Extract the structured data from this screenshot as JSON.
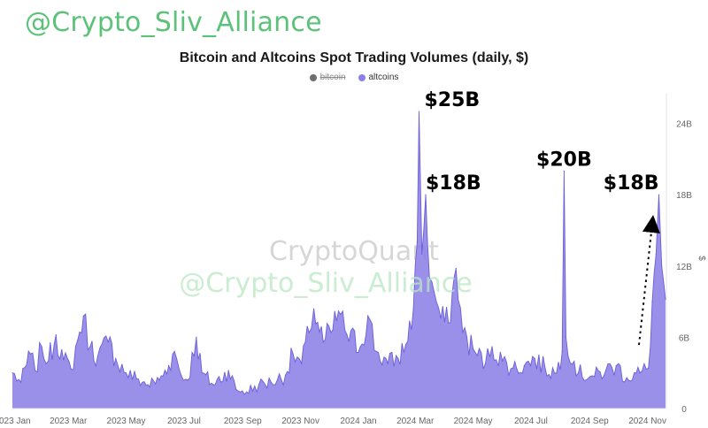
{
  "watermark": {
    "top_text": "@Crypto_Sliv_Alliance",
    "logo_text": "CryptoQuant",
    "overlay_text": "@Crypto_Sliv_Alliance"
  },
  "colors": {
    "altcoins": "#8c80e6",
    "altcoins_line": "#6b5fd8",
    "bitcoin": "#6e6e6e",
    "watermark_green": "#5cc27a"
  },
  "chart_data": {
    "type": "area",
    "title": "Bitcoin and Altcoins Spot Trading Volumes (daily, $)",
    "legend": [
      {
        "name": "bitcoin",
        "color": "#6e6e6e",
        "visible": false
      },
      {
        "name": "altcoins",
        "color": "#8c80e6",
        "visible": true
      }
    ],
    "legend_position": "top-center",
    "x_ticks": [
      "2023 Jan",
      "2023 Mar",
      "2023 May",
      "2023 Jul",
      "2023 Sep",
      "2023 Nov",
      "2024 Jan",
      "2024 Mar",
      "2024 May",
      "2024 Jul",
      "2024 Sep",
      "2024 Nov"
    ],
    "y_ticks": [
      "0",
      "6B",
      "12B",
      "18B",
      "24B"
    ],
    "y_axis_unit": "$",
    "y_axis_position": "right",
    "ylim": [
      0,
      26.5
    ],
    "y_unit": "billion USD",
    "x_range": [
      "2023-01-01",
      "2024-11-20"
    ],
    "grid": false,
    "series": [
      {
        "name": "altcoins",
        "points": [
          [
            "2023-01-01",
            3.0
          ],
          [
            "2023-01-10",
            2.2
          ],
          [
            "2023-01-20",
            4.6
          ],
          [
            "2023-01-25",
            3.2
          ],
          [
            "2023-02-01",
            5.2
          ],
          [
            "2023-02-08",
            4.0
          ],
          [
            "2023-02-16",
            6.2
          ],
          [
            "2023-02-24",
            4.1
          ],
          [
            "2023-03-04",
            3.3
          ],
          [
            "2023-03-11",
            5.8
          ],
          [
            "2023-03-17",
            7.8
          ],
          [
            "2023-03-24",
            5.2
          ],
          [
            "2023-04-01",
            4.4
          ],
          [
            "2023-04-12",
            5.6
          ],
          [
            "2023-04-20",
            4.2
          ],
          [
            "2023-05-01",
            3.0
          ],
          [
            "2023-05-12",
            2.5
          ],
          [
            "2023-05-24",
            2.0
          ],
          [
            "2023-06-05",
            2.4
          ],
          [
            "2023-06-15",
            3.6
          ],
          [
            "2023-06-21",
            4.8
          ],
          [
            "2023-06-28",
            2.8
          ],
          [
            "2023-07-05",
            2.4
          ],
          [
            "2023-07-14",
            6.0
          ],
          [
            "2023-07-20",
            3.0
          ],
          [
            "2023-08-01",
            2.0
          ],
          [
            "2023-08-17",
            3.2
          ],
          [
            "2023-08-25",
            1.6
          ],
          [
            "2023-09-05",
            1.4
          ],
          [
            "2023-09-18",
            2.0
          ],
          [
            "2023-10-01",
            2.2
          ],
          [
            "2023-10-16",
            2.8
          ],
          [
            "2023-10-24",
            4.6
          ],
          [
            "2023-11-02",
            3.8
          ],
          [
            "2023-11-10",
            6.4
          ],
          [
            "2023-11-15",
            8.4
          ],
          [
            "2023-11-25",
            5.6
          ],
          [
            "2023-12-05",
            6.6
          ],
          [
            "2023-12-11",
            8.2
          ],
          [
            "2023-12-20",
            6.2
          ],
          [
            "2024-01-03",
            5.2
          ],
          [
            "2024-01-11",
            7.8
          ],
          [
            "2024-01-20",
            4.8
          ],
          [
            "2024-02-01",
            3.8
          ],
          [
            "2024-02-12",
            4.2
          ],
          [
            "2024-02-20",
            5.4
          ],
          [
            "2024-02-28",
            8.4
          ],
          [
            "2024-03-03",
            14.0
          ],
          [
            "2024-03-05",
            25.0
          ],
          [
            "2024-03-08",
            13.0
          ],
          [
            "2024-03-12",
            18.0
          ],
          [
            "2024-03-16",
            11.0
          ],
          [
            "2024-03-21",
            9.8
          ],
          [
            "2024-03-28",
            7.6
          ],
          [
            "2024-04-05",
            7.2
          ],
          [
            "2024-04-13",
            11.8
          ],
          [
            "2024-04-20",
            6.4
          ],
          [
            "2024-05-01",
            5.0
          ],
          [
            "2024-05-14",
            3.8
          ],
          [
            "2024-05-21",
            5.2
          ],
          [
            "2024-06-01",
            4.0
          ],
          [
            "2024-06-12",
            3.4
          ],
          [
            "2024-06-24",
            3.6
          ],
          [
            "2024-07-05",
            4.2
          ],
          [
            "2024-07-16",
            3.4
          ],
          [
            "2024-07-28",
            3.0
          ],
          [
            "2024-08-03",
            4.8
          ],
          [
            "2024-08-05",
            20.0
          ],
          [
            "2024-08-07",
            6.0
          ],
          [
            "2024-08-20",
            3.0
          ],
          [
            "2024-09-06",
            2.7
          ],
          [
            "2024-09-18",
            3.2
          ],
          [
            "2024-09-29",
            3.6
          ],
          [
            "2024-10-10",
            2.6
          ],
          [
            "2024-10-24",
            3.0
          ],
          [
            "2024-11-02",
            3.4
          ],
          [
            "2024-11-06",
            9.0
          ],
          [
            "2024-11-10",
            13.0
          ],
          [
            "2024-11-13",
            18.0
          ],
          [
            "2024-11-16",
            12.0
          ],
          [
            "2024-11-20",
            9.2
          ]
        ]
      }
    ],
    "annotations": [
      {
        "text": "$25B",
        "date": "2024-03-05",
        "value": 25
      },
      {
        "text": "$18B",
        "date": "2024-03-12",
        "value": 18
      },
      {
        "text": "$20B",
        "date": "2024-08-05",
        "value": 20
      },
      {
        "text": "$18B",
        "date": "2024-11-13",
        "value": 18
      }
    ]
  }
}
